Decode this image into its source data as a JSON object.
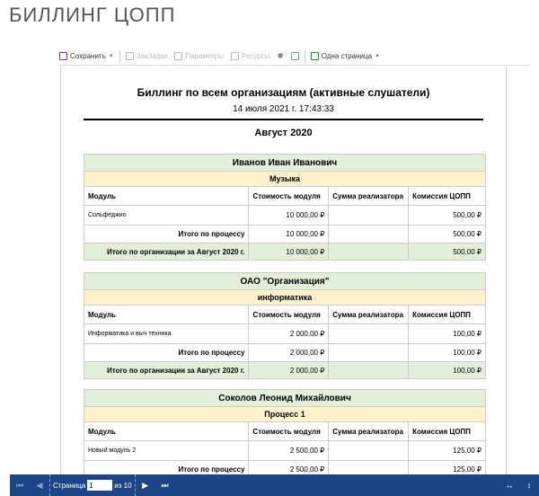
{
  "app_title": "БИЛЛИНГ ЦОПП",
  "toolbar": {
    "save": "Сохранить",
    "bookmarks": "Закладки",
    "params": "Параметры",
    "resources": "Ресурсы",
    "view_mode": "Одна страница"
  },
  "report": {
    "title": "Биллинг по всем организациям (активные слушатели)",
    "date": "14 июля 2021 г. 17:43:33",
    "month": "Август 2020",
    "columns": [
      "Модуль",
      "Стоимость модуля",
      "Сумма реализатора",
      "Комиссия ЦОПП"
    ],
    "groups": [
      {
        "org": "Иванов Иван Иванович",
        "process": "Музыка",
        "module": "Сольфеджио",
        "cost": "10 000,00 ₽",
        "sum": "",
        "commission": "500,00 ₽",
        "process_total_label": "Итого по процессу",
        "process_cost": "10 000,00 ₽",
        "process_commission": "500,00 ₽",
        "org_total_label": "Итого по организации за Август 2020 г.",
        "org_cost": "10 000,00 ₽",
        "org_commission": "500,00 ₽"
      },
      {
        "org": "ОАО \"Организация\"",
        "process": "информатика",
        "module": "Информатика и выч техника",
        "cost": "2 000,00 ₽",
        "sum": "",
        "commission": "100,00 ₽",
        "process_total_label": "Итого по процессу",
        "process_cost": "2 000,00 ₽",
        "process_commission": "100,00 ₽",
        "org_total_label": "Итого по организации за Август 2020 г.",
        "org_cost": "2 000,00 ₽",
        "org_commission": "100,00 ₽"
      },
      {
        "org": "Соколов Леонид Михайлович",
        "process": "Процесс 1",
        "module": "Новый модуль 2",
        "cost": "2 500,00 ₽",
        "sum": "",
        "commission": "125,00 ₽",
        "process_total_label": "Итого по процессу",
        "process_cost": "2 500,00 ₽",
        "process_commission": "125,00 ₽"
      }
    ]
  },
  "footer": {
    "page_label": "Страница",
    "page_value": "1",
    "of_label": "из 10"
  }
}
